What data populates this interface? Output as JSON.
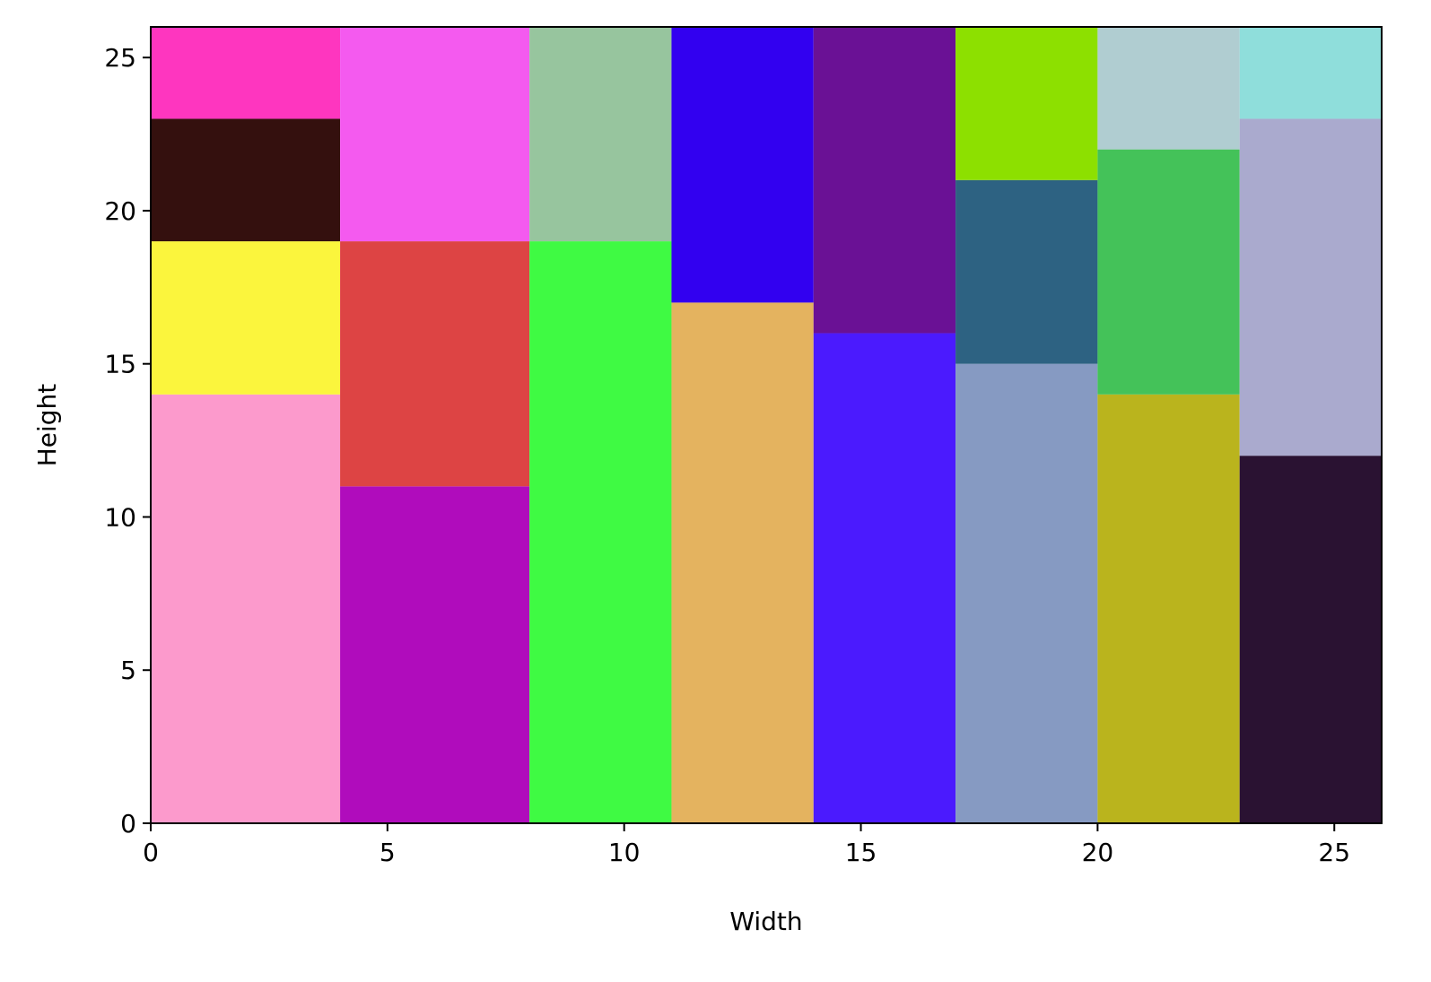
{
  "chart_data": {
    "type": "rect-packing",
    "title": "",
    "xlabel": "Width",
    "ylabel": "Height",
    "xlim": [
      0,
      26
    ],
    "ylim": [
      0,
      26
    ],
    "xticks": [
      0,
      5,
      10,
      15,
      20,
      25
    ],
    "yticks": [
      0,
      5,
      10,
      15,
      20,
      25
    ],
    "xtick_labels": [
      "0",
      "5",
      "10",
      "15",
      "20",
      "25"
    ],
    "ytick_labels": [
      "0",
      "5",
      "10",
      "15",
      "20",
      "25"
    ],
    "grid": false,
    "rectangles": [
      {
        "x": 0,
        "y": 0,
        "w": 4,
        "h": 14,
        "color": "#fc9acc"
      },
      {
        "x": 0,
        "y": 14,
        "w": 4,
        "h": 5,
        "color": "#fbf53d"
      },
      {
        "x": 0,
        "y": 19,
        "w": 4,
        "h": 4,
        "color": "#34100e"
      },
      {
        "x": 0,
        "y": 23,
        "w": 4,
        "h": 3,
        "color": "#fe36bf"
      },
      {
        "x": 4,
        "y": 0,
        "w": 4,
        "h": 11,
        "color": "#b00cbc"
      },
      {
        "x": 4,
        "y": 11,
        "w": 4,
        "h": 8,
        "color": "#dd4444"
      },
      {
        "x": 4,
        "y": 19,
        "w": 4,
        "h": 7,
        "color": "#f45aef"
      },
      {
        "x": 8,
        "y": 0,
        "w": 3,
        "h": 19,
        "color": "#3ffa43"
      },
      {
        "x": 8,
        "y": 19,
        "w": 3,
        "h": 7,
        "color": "#97c59e"
      },
      {
        "x": 11,
        "y": 0,
        "w": 3,
        "h": 17,
        "color": "#e4b35f"
      },
      {
        "x": 11,
        "y": 17,
        "w": 3,
        "h": 9,
        "color": "#3200f0"
      },
      {
        "x": 14,
        "y": 0,
        "w": 3,
        "h": 16,
        "color": "#4b1afe"
      },
      {
        "x": 14,
        "y": 16,
        "w": 3,
        "h": 10,
        "color": "#6a1195"
      },
      {
        "x": 17,
        "y": 0,
        "w": 3,
        "h": 15,
        "color": "#869ac2"
      },
      {
        "x": 17,
        "y": 15,
        "w": 3,
        "h": 6,
        "color": "#2d6282"
      },
      {
        "x": 17,
        "y": 21,
        "w": 3,
        "h": 5,
        "color": "#8de000"
      },
      {
        "x": 20,
        "y": 0,
        "w": 3,
        "h": 14,
        "color": "#bab41d"
      },
      {
        "x": 20,
        "y": 14,
        "w": 3,
        "h": 8,
        "color": "#44c259"
      },
      {
        "x": 20,
        "y": 22,
        "w": 3,
        "h": 4,
        "color": "#b0cdd1"
      },
      {
        "x": 23,
        "y": 0,
        "w": 3,
        "h": 12,
        "color": "#2a1232"
      },
      {
        "x": 23,
        "y": 12,
        "w": 3,
        "h": 11,
        "color": "#aaaace"
      },
      {
        "x": 23,
        "y": 23,
        "w": 3,
        "h": 3,
        "color": "#8fdedb"
      }
    ]
  }
}
